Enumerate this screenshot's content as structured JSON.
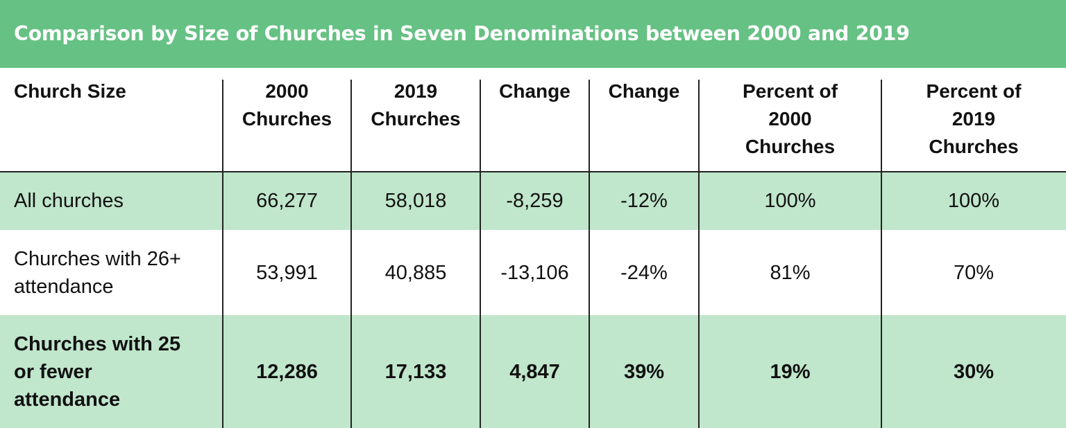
{
  "title": "Comparison by Size of Churches in Seven Denominations between 2000 and 2019",
  "colors": {
    "title_bg": "#66c184",
    "row_highlight": "#c0e6cb"
  },
  "chart_data": {
    "type": "table",
    "title": "Comparison by Size of Churches in Seven Denominations between 2000 and 2019",
    "columns": [
      "Church Size",
      "2000 Churches",
      "2019 Churches",
      "Change",
      "Change",
      "Percent of 2000 Churches",
      "Percent of 2019 Churches"
    ],
    "rows": [
      [
        "All churches",
        "66,277",
        "58,018",
        "-8,259",
        "-12%",
        "100%",
        "100%"
      ],
      [
        "Churches with 26+ attendance",
        "53,991",
        "40,885",
        "-13,106",
        "-24%",
        "81%",
        "70%"
      ],
      [
        "Churches with 25 or fewer attendance",
        "12,286",
        "17,133",
        "4,847",
        "39%",
        "19%",
        "30%"
      ]
    ]
  }
}
